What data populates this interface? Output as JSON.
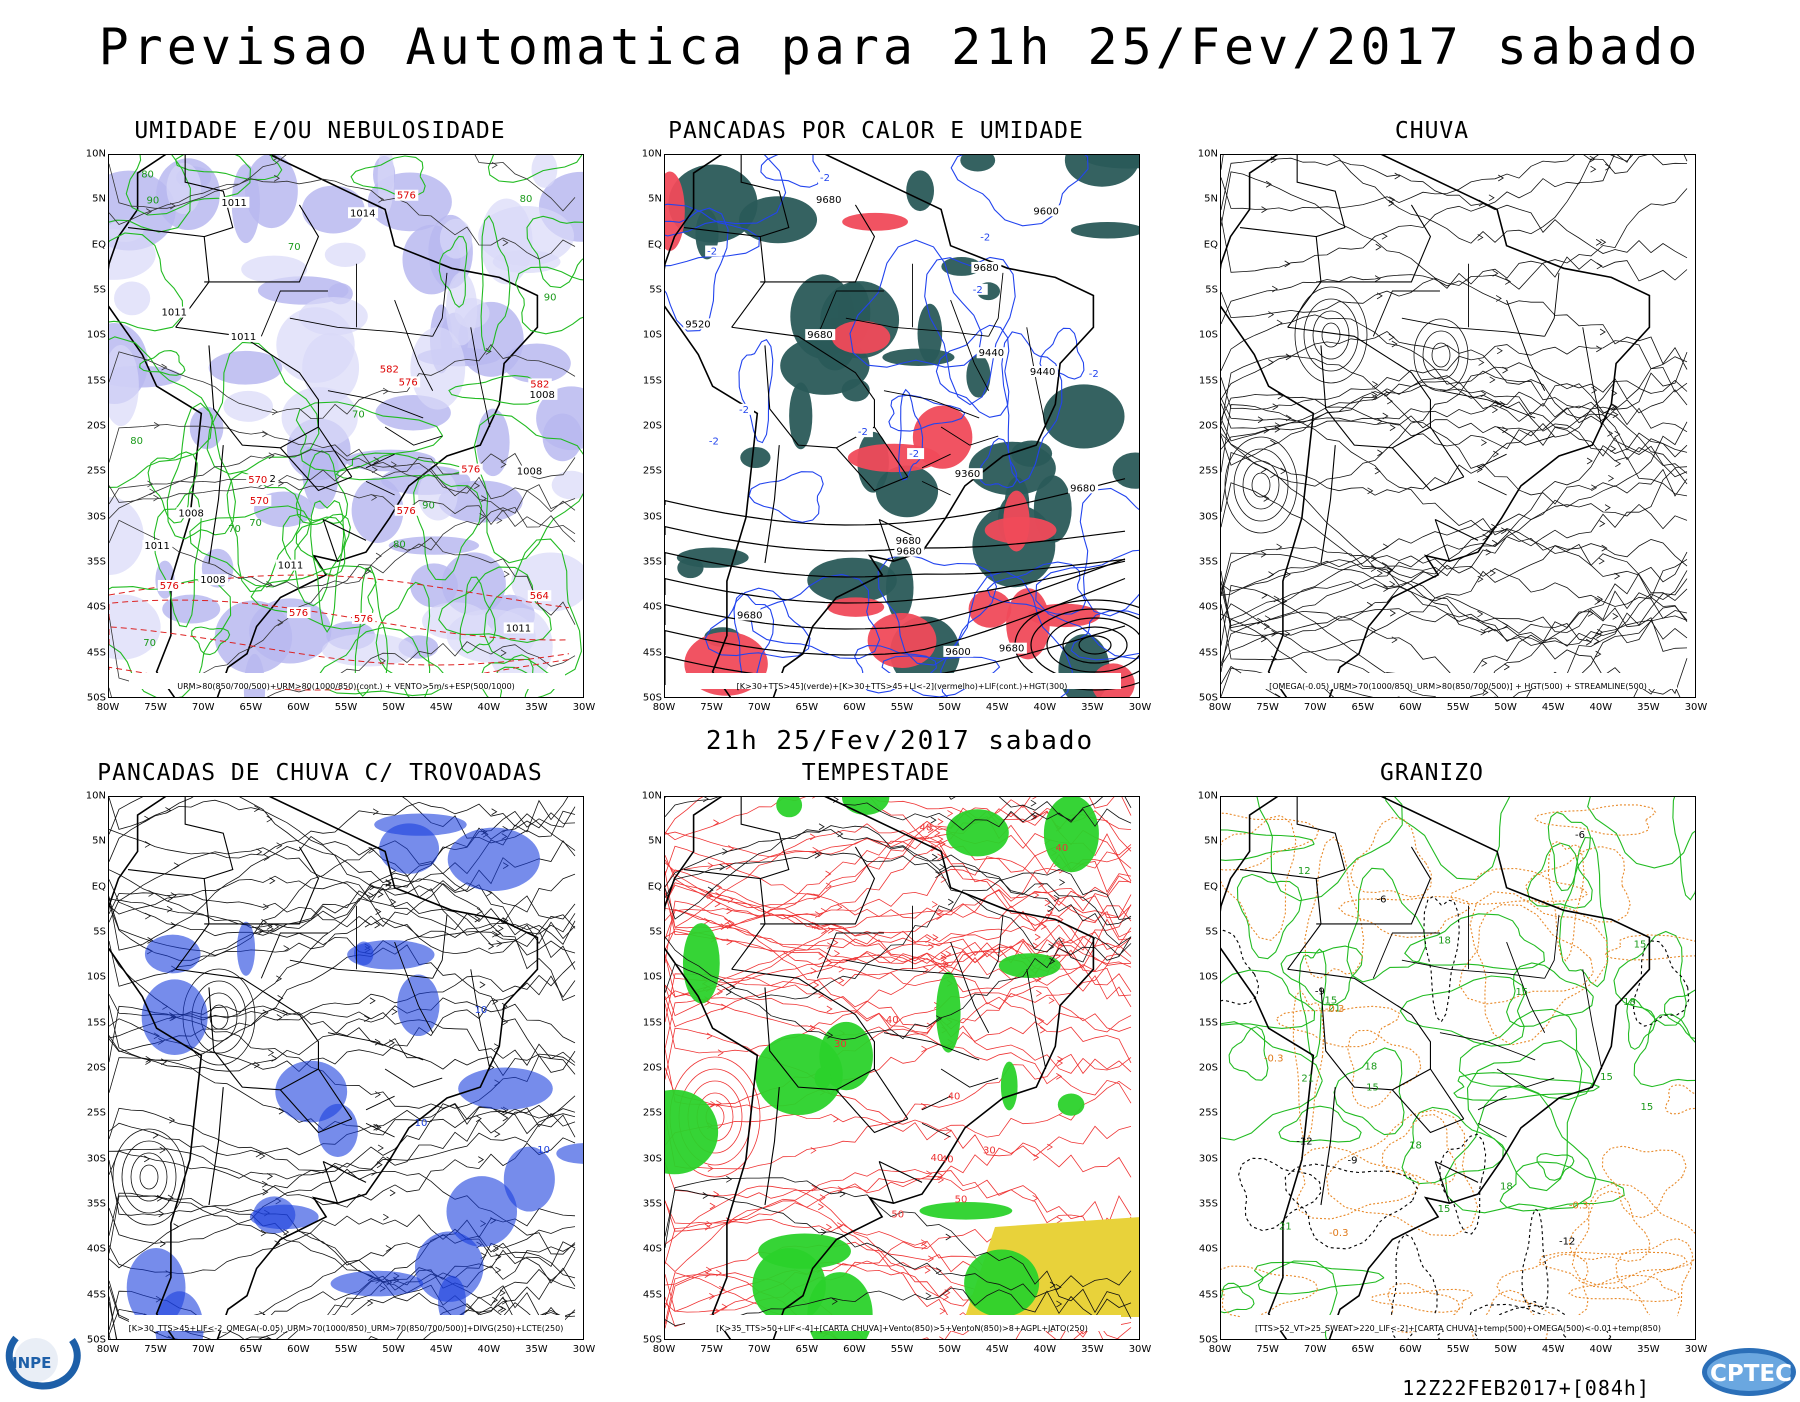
{
  "main_title": "Previsao Automatica  para 21h 25/Fev/2017 sabado",
  "middle_title": "21h 25/Fev/2017 sabado",
  "footer_run": "12Z22FEB2017+[084h]",
  "logos": {
    "left": "INPE",
    "right": "CPTEC"
  },
  "axes": {
    "lat_labels": [
      "10N",
      "5N",
      "EQ",
      "5S",
      "10S",
      "15S",
      "20S",
      "25S",
      "30S",
      "35S",
      "40S",
      "45S",
      "50S"
    ],
    "lon_labels": [
      "80W",
      "75W",
      "70W",
      "65W",
      "60W",
      "55W",
      "50W",
      "45W",
      "40W",
      "35W",
      "30W"
    ]
  },
  "panels": [
    {
      "title": "UMIDADE E/OU NEBULOSIDADE",
      "caption": "URM>80(850/700/500)+URM>80(1000/850)(cont.) + VENTO>5m/s+ESP(500/1000)",
      "style": "humidity",
      "contour_labels": [
        "1011",
        "1008",
        "1011",
        "1011",
        "1008",
        "1008",
        "1011",
        "1002",
        "1008",
        "1011",
        "1014",
        "1011"
      ],
      "red_labels": [
        "576",
        "576",
        "576",
        "576",
        "582",
        "576",
        "576",
        "570",
        "582",
        "564",
        "576",
        "570"
      ],
      "green_labels": [
        "90",
        "80",
        "80",
        "80",
        "90",
        "80",
        "70",
        "70",
        "70",
        "90",
        "70",
        "70"
      ]
    },
    {
      "title": "PANCADAS POR CALOR E UMIDADE",
      "caption": "[K>30+TTS>45](verde)+[K>30+TTS>45+LI<-2](vermelho)+LIF(cont.)+HGT(300)",
      "style": "convection",
      "contour_labels": [
        "9680",
        "9680",
        "9680",
        "9680",
        "9680",
        "9680",
        "9680",
        "9680",
        "9600",
        "9440",
        "9360",
        "9600",
        "9520",
        "9440"
      ],
      "blue_labels": [
        "-2",
        "-2",
        "-2",
        "-2",
        "-2",
        "-2",
        "-2",
        "-2",
        "-2"
      ]
    },
    {
      "title": "CHUVA",
      "caption": "[OMEGA(-0.05)_URM>70(1000/850)_URM>80(850/700/500)] + HGT(500) + STREAMLINE(500)",
      "style": "streamlines"
    },
    {
      "title": "PANCADAS DE CHUVA C/ TROVOADAS",
      "caption": "[K>30_TTS>45+LIF<-2_OMEGA(-0.05)_URM>70(1000/850)_URM>70(850/700/500)]+DIVG(250)+LCTE(250)",
      "style": "thunder",
      "blue_labels": [
        "10",
        "10",
        "10"
      ]
    },
    {
      "title": "TEMPESTADE",
      "caption": "[K>35_TTS>50+LIF<-4]+[CARTA CHUVA]+Vento(850)>5+VentoN(850)>8+AGPL+JATO(250)",
      "style": "storm",
      "red_labels": [
        "40",
        "40",
        "50",
        "40",
        "30",
        "40",
        "50",
        "40",
        "30",
        "40"
      ]
    },
    {
      "title": "GRANIZO",
      "caption": "[TTS>52_VT>25_SWEAT>220_LIF<-2]+[CARTA CHUVA]+temp(500)+OMEGA(500)<-0.01+temp(850)",
      "style": "hail",
      "green_labels": [
        "18",
        "15",
        "15",
        "18",
        "21",
        "18",
        "15",
        "21",
        "15",
        "18",
        "15",
        "12",
        "15",
        "18",
        "21",
        "15"
      ],
      "black_labels": [
        "-6",
        "-9",
        "-6",
        "-12",
        "-9",
        "-12"
      ],
      "orange_labels": [
        "-0.3",
        "-0.3",
        "-0.3",
        "-0.3"
      ]
    }
  ]
}
